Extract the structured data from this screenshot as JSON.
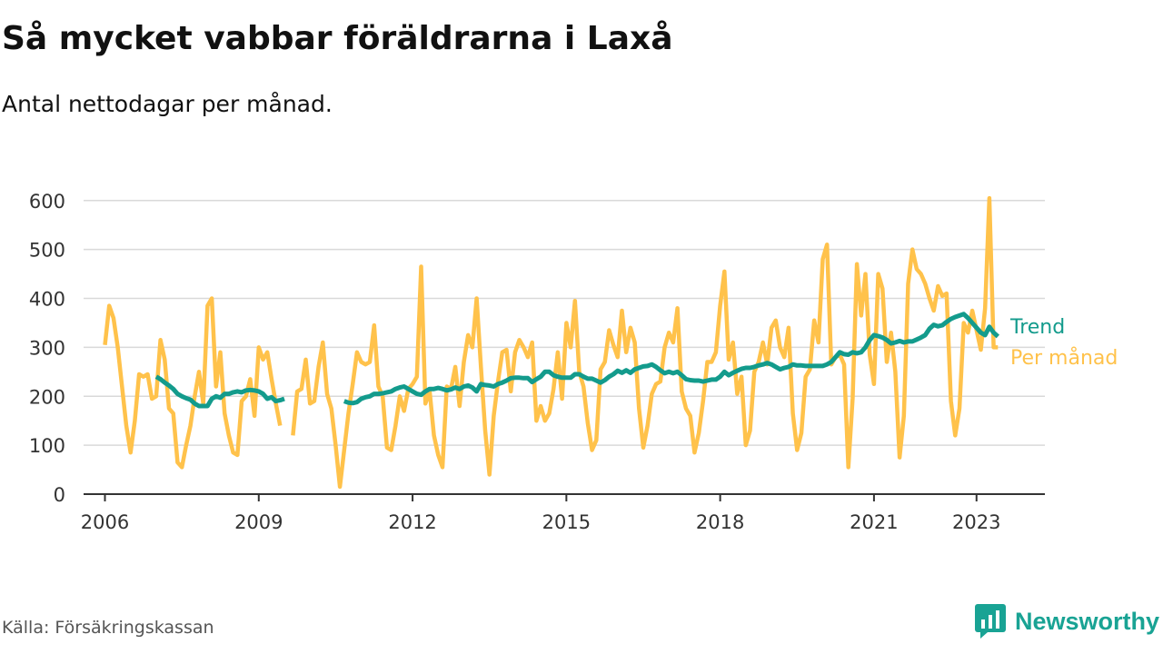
{
  "header": {
    "title": "Så mycket vabbar föräldrarna i Laxå",
    "subtitle": "Antal nettodagar per månad."
  },
  "footer": {
    "source": "Källa: Försäkringskassan",
    "brand": "Newsworthy"
  },
  "colors": {
    "monthly": "#ffc24b",
    "trend": "#139b8c",
    "grid": "#d9d9d9",
    "axis": "#333333",
    "brand": "#19a394"
  },
  "chart_data": {
    "type": "line",
    "x_start": "2006-01",
    "x_step": "month",
    "xlim": [
      "2005-08",
      "2024-05"
    ],
    "ylim": [
      0,
      620
    ],
    "y_ticks": [
      0,
      100,
      200,
      300,
      400,
      500,
      600
    ],
    "x_ticks": [
      "2006",
      "2009",
      "2012",
      "2015",
      "2018",
      "2021",
      "2023"
    ],
    "grid": "horizontal",
    "legend": "end-of-line labels",
    "series": [
      {
        "name": "Per månad",
        "color": "#ffc24b",
        "values": [
          305,
          385,
          360,
          300,
          220,
          140,
          85,
          150,
          245,
          240,
          245,
          195,
          200,
          315,
          275,
          175,
          165,
          65,
          55,
          100,
          140,
          200,
          250,
          185,
          385,
          400,
          220,
          290,
          165,
          120,
          85,
          80,
          190,
          200,
          235,
          160,
          300,
          275,
          290,
          235,
          185,
          140,
          null,
          null,
          120,
          210,
          215,
          275,
          185,
          190,
          260,
          310,
          205,
          175,
          100,
          15,
          90,
          165,
          225,
          290,
          270,
          265,
          270,
          345,
          220,
          200,
          95,
          90,
          140,
          200,
          170,
          215,
          225,
          240,
          465,
          185,
          210,
          120,
          80,
          55,
          220,
          215,
          260,
          180,
          270,
          325,
          300,
          400,
          260,
          130,
          40,
          160,
          230,
          290,
          295,
          210,
          290,
          315,
          300,
          280,
          310,
          150,
          180,
          150,
          165,
          215,
          290,
          195,
          350,
          300,
          395,
          250,
          220,
          145,
          90,
          110,
          255,
          270,
          335,
          305,
          280,
          375,
          290,
          340,
          310,
          175,
          95,
          140,
          205,
          225,
          230,
          300,
          330,
          310,
          380,
          210,
          175,
          160,
          85,
          125,
          190,
          270,
          270,
          290,
          385,
          455,
          275,
          310,
          205,
          240,
          100,
          130,
          250,
          270,
          310,
          265,
          340,
          355,
          300,
          280,
          340,
          165,
          90,
          125,
          240,
          255,
          355,
          310,
          480,
          510,
          265,
          280,
          285,
          265,
          55,
          195,
          470,
          365,
          450,
          285,
          225,
          450,
          420,
          270,
          330,
          250,
          75,
          160,
          430,
          500,
          460,
          450,
          430,
          400,
          375,
          425,
          405,
          410,
          190,
          120,
          175,
          350,
          330,
          375,
          335,
          295,
          380,
          605,
          300,
          300
        ]
      },
      {
        "name": "Trend",
        "color": "#139b8c",
        "values": [
          null,
          null,
          null,
          null,
          null,
          null,
          null,
          null,
          null,
          null,
          null,
          null,
          240,
          235,
          228,
          222,
          215,
          205,
          200,
          196,
          193,
          185,
          180,
          180,
          180,
          195,
          200,
          197,
          205,
          205,
          208,
          210,
          208,
          212,
          213,
          212,
          210,
          205,
          195,
          198,
          190,
          192,
          195,
          null,
          null,
          null,
          null,
          null,
          null,
          null,
          null,
          null,
          null,
          null,
          null,
          null,
          190,
          187,
          186,
          188,
          195,
          198,
          200,
          205,
          205,
          206,
          208,
          210,
          215,
          218,
          220,
          215,
          210,
          205,
          203,
          210,
          215,
          215,
          217,
          215,
          212,
          214,
          218,
          215,
          220,
          222,
          218,
          210,
          225,
          223,
          222,
          220,
          225,
          228,
          232,
          237,
          238,
          238,
          237,
          237,
          229,
          235,
          240,
          250,
          250,
          243,
          240,
          238,
          238,
          238,
          245,
          245,
          240,
          236,
          236,
          232,
          228,
          233,
          240,
          245,
          252,
          248,
          253,
          248,
          255,
          258,
          261,
          262,
          265,
          260,
          253,
          247,
          250,
          247,
          250,
          243,
          235,
          233,
          232,
          232,
          230,
          232,
          234,
          234,
          240,
          250,
          243,
          248,
          252,
          256,
          258,
          258,
          260,
          263,
          265,
          268,
          265,
          260,
          255,
          258,
          260,
          265,
          263,
          263,
          262,
          262,
          262,
          262,
          262,
          265,
          270,
          280,
          290,
          286,
          285,
          290,
          288,
          290,
          300,
          315,
          325,
          323,
          320,
          315,
          308,
          310,
          313,
          310,
          312,
          312,
          316,
          320,
          325,
          338,
          346,
          343,
          345,
          352,
          358,
          362,
          365,
          368,
          360,
          350,
          340,
          330,
          325,
          342,
          330,
          322
        ]
      }
    ],
    "labels": {
      "trend": "Trend",
      "monthly": "Per månad"
    }
  }
}
